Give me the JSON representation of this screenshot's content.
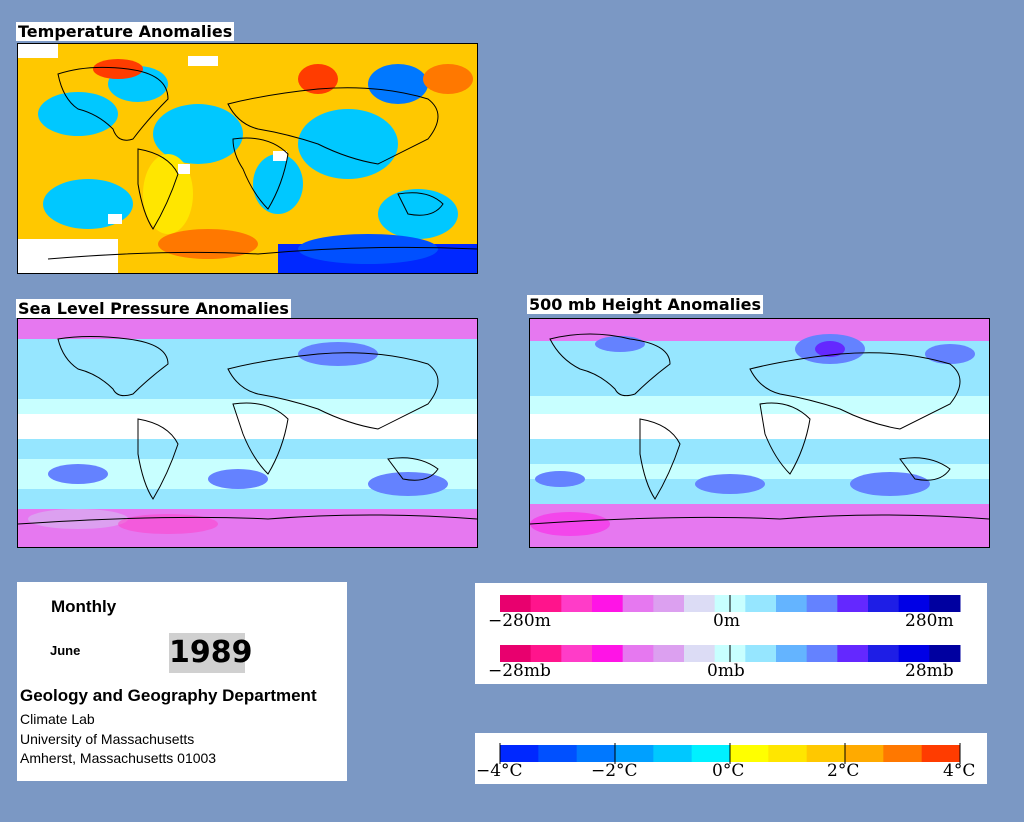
{
  "panels": {
    "temperature": {
      "title": "Temperature Anomalies"
    },
    "slp": {
      "title": "Sea Level Pressure Anomalies"
    },
    "height500": {
      "title": "500 mb Height Anomalies"
    }
  },
  "info": {
    "frequency": "Monthly",
    "month": "June",
    "year": "1989",
    "department": "Geology and Geography Department",
    "lab": "Climate Lab",
    "university": "University of Massachusetts",
    "address": "Amherst, Massachusetts 01003"
  },
  "legends": {
    "height": {
      "colors": [
        "#e8006e",
        "#ff148c",
        "#ff3cc8",
        "#ff14e6",
        "#e678f0",
        "#dca0f0",
        "#dcdcf5",
        "#c8ffff",
        "#96e6ff",
        "#64b4ff",
        "#6482ff",
        "#6428ff",
        "#1e1ee6",
        "#0000e6",
        "#0000a0"
      ],
      "labels": [
        "−280m",
        "0m",
        "280m"
      ]
    },
    "pressure": {
      "colors": [
        "#e8006e",
        "#ff148c",
        "#ff3cc8",
        "#ff14e6",
        "#e678f0",
        "#dca0f0",
        "#dcdcf5",
        "#c8ffff",
        "#96e6ff",
        "#64b4ff",
        "#6482ff",
        "#6428ff",
        "#1e1ee6",
        "#0000e6",
        "#0000a0"
      ],
      "labels": [
        "−28mb",
        "0mb",
        "28mb"
      ]
    },
    "temperature": {
      "colors": [
        "#0028ff",
        "#0050ff",
        "#0078ff",
        "#00a0ff",
        "#00c8ff",
        "#00f0ff",
        "#ffff00",
        "#ffe600",
        "#ffc800",
        "#ffaa00",
        "#ff7800",
        "#ff3c00"
      ],
      "labels": [
        "−4°C",
        "−2°C",
        "0°C",
        "2°C",
        "4°C"
      ]
    }
  }
}
